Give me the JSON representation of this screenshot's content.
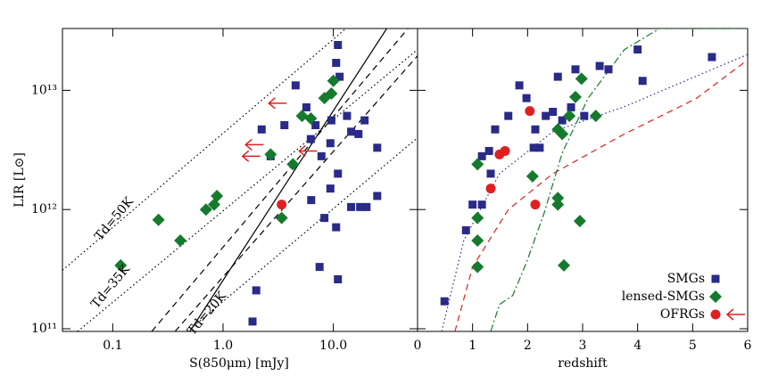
{
  "chart_data": [
    {
      "type": "scatter",
      "xlabel": "S(850μm) [mJy]",
      "ylabel": "LIR [L⊙]",
      "xscale": "log",
      "yscale": "log",
      "xlim": [
        0.035,
        58
      ],
      "ylim": [
        95000000000.0,
        33000000000000.0
      ],
      "xticks": [
        0.1,
        {
          "value": 1,
          "label": "1.0"
        },
        {
          "value": 10,
          "label": "10.0"
        }
      ],
      "yticks": [
        {
          "value": 100000000000.0,
          "label": "10¹¹"
        },
        {
          "value": 1000000000000.0,
          "label": "10¹²"
        },
        {
          "value": 10000000000000.0,
          "label": "10¹³"
        }
      ],
      "annotations": [
        "Td=50K",
        "Td=35K",
        "Td=20K"
      ],
      "series": [
        {
          "name": "SMGs",
          "marker": "square",
          "color": "#2a2a88",
          "x": [
            2.24,
            2.7,
            4.55,
            6.25,
            6.9,
            7.8,
            9.4,
            10.6,
            11.4,
            9.6,
            11.0,
            13.3,
            14.5,
            16.9,
            19.2,
            11.0,
            9.4,
            6.3,
            8.3,
            10.6,
            14.5,
            17.5,
            20,
            11.0,
            2.0,
            1.85,
            7.5,
            25,
            25,
            3.6,
            5.7
          ],
          "y": [
            4700000000000.0,
            2800000000000.0,
            11000000000000.0,
            3900000000000.0,
            5100000000000.0,
            2800000000000.0,
            3600000000000.0,
            17000000000000.0,
            13000000000000.0,
            5600000000000.0,
            2000000000000.0,
            6100000000000.0,
            4500000000000.0,
            4300000000000.0,
            5600000000000.0,
            24000000000000.0,
            1500000000000.0,
            1200000000000.0,
            850000000000.0,
            710000000000.0,
            1050000000000.0,
            1050000000000.0,
            1050000000000.0,
            260000000000.0,
            210000000000.0,
            115000000000.0,
            330000000000.0,
            1300000000000.0,
            3300000000000.0,
            5100000000000.0,
            7200000000000.0
          ]
        },
        {
          "name": "lensed-SMGs",
          "marker": "diamond",
          "color": "#167a2e",
          "x": [
            0.118,
            0.26,
            0.41,
            0.7,
            0.88,
            0.83,
            2.7,
            3.4,
            4.3,
            5.2,
            6.25,
            8.3,
            10,
            9.6
          ],
          "y": [
            340000000000.0,
            820000000000.0,
            550000000000.0,
            1000000000000.0,
            1300000000000.0,
            1100000000000.0,
            2900000000000.0,
            850000000000.0,
            2400000000000.0,
            6100000000000.0,
            5800000000000.0,
            8600000000000.0,
            12000000000000.0,
            9400000000000.0
          ]
        },
        {
          "name": "OFRGs",
          "marker": "circle",
          "color": "#e02020",
          "x": [
            3.4
          ],
          "y": [
            1100000000000.0
          ],
          "limits": {
            "x": [
              2.6,
              1.6,
              1.5,
              4.9
            ],
            "y": [
              7800000000000.0,
              3500000000000.0,
              2800000000000.0,
              3100000000000.0
            ]
          }
        }
      ],
      "curves": [
        {
          "style": "dotted",
          "x": [
            0.035,
            13.0
          ],
          "y": [
            310000000000.0,
            33000000000000.0
          ]
        },
        {
          "style": "dotted",
          "x": [
            0.048,
            58
          ],
          "y": [
            95000000000.0,
            22000000000000.0
          ]
        },
        {
          "style": "dotted",
          "x": [
            0.476,
            58
          ],
          "y": [
            95000000000.0,
            4000000000000.0
          ]
        },
        {
          "style": "dashed",
          "x": [
            0.226,
            47.5
          ],
          "y": [
            95000000000.0,
            33000000000000.0
          ]
        },
        {
          "style": "dashed",
          "x": [
            0.367,
            58
          ],
          "y": [
            95000000000.0,
            19500000000000.0
          ]
        },
        {
          "style": "solid",
          "x": [
            0.5,
            30.5
          ],
          "y": [
            95000000000.0,
            33000000000000.0
          ]
        }
      ]
    },
    {
      "type": "scatter",
      "xlabel": "redshift",
      "yscale": "log",
      "xlim": [
        0,
        6
      ],
      "ylim": [
        95000000000.0,
        33000000000000.0
      ],
      "xticks": [
        0,
        1,
        2,
        3,
        4,
        5,
        6
      ],
      "legend": "lower right",
      "series": [
        {
          "name": "SMGs",
          "marker": "square",
          "color": "#2a2a88",
          "x": [
            0.49,
            0.88,
            1.0,
            1.17,
            1.3,
            1.41,
            1.33,
            1.65,
            1.85,
            1.98,
            2.14,
            2.22,
            2.33,
            2.46,
            2.55,
            2.63,
            2.79,
            2.87,
            3.03,
            3.31,
            3.47,
            4.0,
            4.09,
            5.35,
            1.17,
            2.11
          ],
          "y": [
            170000000000.0,
            670000000000.0,
            1100000000000.0,
            1100000000000.0,
            3100000000000.0,
            4700000000000.0,
            2000000000000.0,
            6100000000000.0,
            11000000000000.0,
            8600000000000.0,
            4700000000000.0,
            3300000000000.0,
            6100000000000.0,
            6600000000000.0,
            13000000000000.0,
            5600000000000.0,
            7200000000000.0,
            15000000000000.0,
            6100000000000.0,
            16000000000000.0,
            15000000000000.0,
            22000000000000.0,
            12000000000000.0,
            19000000000000.0,
            2800000000000.0,
            3300000000000.0
          ]
        },
        {
          "name": "lensed-SMGs",
          "marker": "diamond",
          "color": "#167a2e",
          "x": [
            1.09,
            1.09,
            1.09,
            1.09,
            2.09,
            2.55,
            2.63,
            2.76,
            2.87,
            2.98,
            3.24,
            2.55,
            2.55,
            2.95,
            2.66
          ],
          "y": [
            2400000000000.0,
            850000000000.0,
            550000000000.0,
            330000000000.0,
            1900000000000.0,
            4700000000000.0,
            4300000000000.0,
            6100000000000.0,
            8800000000000.0,
            12500000000000.0,
            6100000000000.0,
            1250000000000.0,
            1100000000000.0,
            800000000000.0,
            340000000000.0
          ]
        },
        {
          "name": "OFRGs",
          "marker": "circle",
          "color": "#e02020",
          "x": [
            1.33,
            1.49,
            1.59,
            2.04,
            2.14
          ],
          "y": [
            1500000000000.0,
            2900000000000.0,
            3100000000000.0,
            6700000000000.0,
            1100000000000.0
          ]
        }
      ],
      "curves": [
        {
          "style": "dotted",
          "color": "#2a2a88",
          "x": [
            0.44,
            0.84,
            1.49,
            2.46,
            3.76,
            6
          ],
          "y": [
            95000000000.0,
            550000000000.0,
            2000000000000.0,
            4500000000000.0,
            7300000000000.0,
            20000000000000.0
          ]
        },
        {
          "style": "dashed",
          "color": "#e02020",
          "x": [
            0.68,
            1.0,
            1.65,
            2.46,
            3.76,
            5.06,
            6
          ],
          "y": [
            95000000000.0,
            330000000000.0,
            1000000000000.0,
            2000000000000.0,
            4300000000000.0,
            8500000000000.0,
            18000000000000.0
          ]
        },
        {
          "style": "dashdot",
          "color": "#167a2e",
          "x": [
            1.33,
            1.49,
            1.73,
            1.98,
            2.3,
            2.63,
            3.1,
            3.76,
            4.4,
            6
          ],
          "y": [
            95000000000.0,
            160000000000.0,
            190000000000.0,
            360000000000.0,
            930000000000.0,
            3000000000000.0,
            8600000000000.0,
            22000000000000.0,
            33000000000000.0,
            33000000000000.0
          ]
        }
      ]
    }
  ]
}
